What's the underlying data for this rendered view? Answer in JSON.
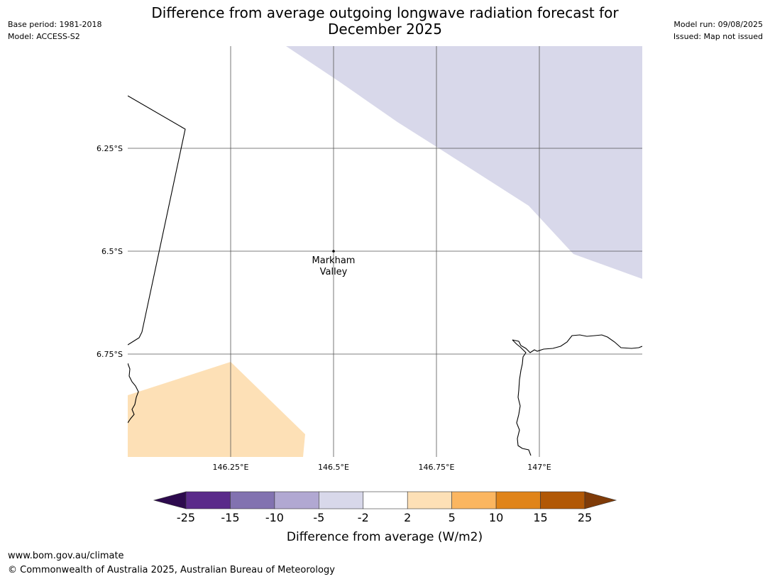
{
  "header": {
    "title_line1": "Difference from average outgoing longwave radiation forecast for",
    "title_line2": "December 2025",
    "base_period": "Base period: 1981-2018",
    "model": "Model: ACCESS-S2",
    "model_run": "Model run: 09/08/2025",
    "issued": "Issued: Map not issued"
  },
  "map": {
    "lat_labels": [
      "6.25°S",
      "6.5°S",
      "6.75°S"
    ],
    "lon_labels": [
      "146.25°E",
      "146.5°E",
      "146.75°E",
      "147°E"
    ],
    "place_label_line1": "Markham",
    "place_label_line2": "Valley",
    "colors": {
      "anomaly_neg_light": "#d8d8ea",
      "anomaly_pos_light": "#fde0b6",
      "grid": "#555555",
      "coastline": "#000000"
    }
  },
  "legend": {
    "title": "Difference from average (W/m2)",
    "ticks": [
      "-25",
      "-15",
      "-10",
      "-5",
      "-2",
      "2",
      "5",
      "10",
      "15",
      "25"
    ],
    "colors": [
      "#2d0a4e",
      "#5a2a8a",
      "#8272b0",
      "#b1a8d2",
      "#d8d8ea",
      "#ffffff",
      "#fde0b6",
      "#fbb660",
      "#e08419",
      "#b15806",
      "#7f3b08"
    ]
  },
  "footer": {
    "url": "www.bom.gov.au/climate",
    "copyright": "© Commonwealth of Australia 2025, Australian Bureau of Meteorology"
  }
}
